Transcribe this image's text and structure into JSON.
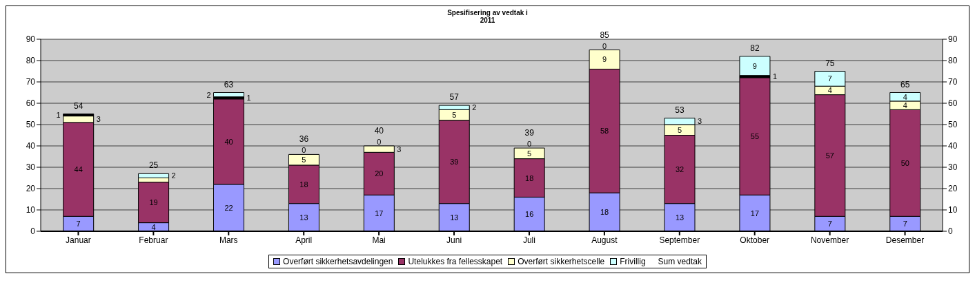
{
  "chart_data": {
    "type": "bar",
    "title": "Spesifisering av vedtak i",
    "subtitle": "2011",
    "stacked": true,
    "categories": [
      "Januar",
      "Februar",
      "Mars",
      "April",
      "Mai",
      "Juni",
      "Juli",
      "August",
      "September",
      "Oktober",
      "November",
      "Desember"
    ],
    "series": [
      {
        "name": "Overført sikkerhetsavdelingen",
        "color": "#9999ff",
        "values": [
          7,
          4,
          22,
          13,
          17,
          13,
          16,
          18,
          13,
          17,
          7,
          7
        ],
        "value_labels": [
          "7",
          "4",
          "22",
          "13",
          "17",
          "13",
          "16",
          "18",
          "13",
          "17",
          "7",
          "7"
        ]
      },
      {
        "name": "Utelukkes fra fellesskapet",
        "color": "#993366",
        "values": [
          44,
          19,
          40,
          18,
          20,
          39,
          18,
          58,
          32,
          55,
          57,
          50
        ],
        "value_labels": [
          "44",
          "19",
          "40",
          "18",
          "20",
          "39",
          "18",
          "58",
          "32",
          "55",
          "57",
          "50"
        ]
      },
      {
        "name": "Overført sikkerhetscelle",
        "color": "#ffffcc",
        "values": [
          3,
          2,
          null,
          5,
          3,
          5,
          5,
          9,
          5,
          null,
          4,
          4
        ],
        "value_labels": [
          "3",
          null,
          null,
          "5",
          "3",
          "5",
          "5",
          "9",
          "5",
          null,
          "4",
          "4"
        ]
      },
      {
        "color": "#000000",
        "values": [
          1,
          null,
          1,
          null,
          null,
          null,
          null,
          null,
          null,
          1,
          null,
          null
        ],
        "value_labels": [
          "1",
          null,
          "1",
          null,
          null,
          null,
          null,
          null,
          null,
          "1",
          null,
          null
        ]
      },
      {
        "name": "Frivillig",
        "color": "#ccffff",
        "values": [
          null,
          2,
          2,
          0,
          0,
          2,
          0,
          0,
          3,
          9,
          7,
          4
        ],
        "value_labels": [
          null,
          "2",
          "2",
          "0",
          "0",
          "2",
          "0",
          "0",
          "3",
          "9",
          "7",
          "4"
        ]
      }
    ],
    "totals": [
      "54",
      "25",
      "63",
      "36",
      "40",
      "57",
      "39",
      "85",
      "53",
      "82",
      "75",
      "65"
    ],
    "annotations": [
      "Sum vedtak"
    ],
    "ylim": [
      0,
      90
    ],
    "yticks": [
      0,
      10,
      20,
      30,
      40,
      50,
      60,
      70,
      80,
      90
    ],
    "y2lim": [
      0,
      90
    ],
    "y2ticks": [
      0,
      10,
      20,
      30,
      40,
      50,
      60,
      70,
      80,
      90
    ],
    "grid": "y",
    "legend": "bottom"
  }
}
